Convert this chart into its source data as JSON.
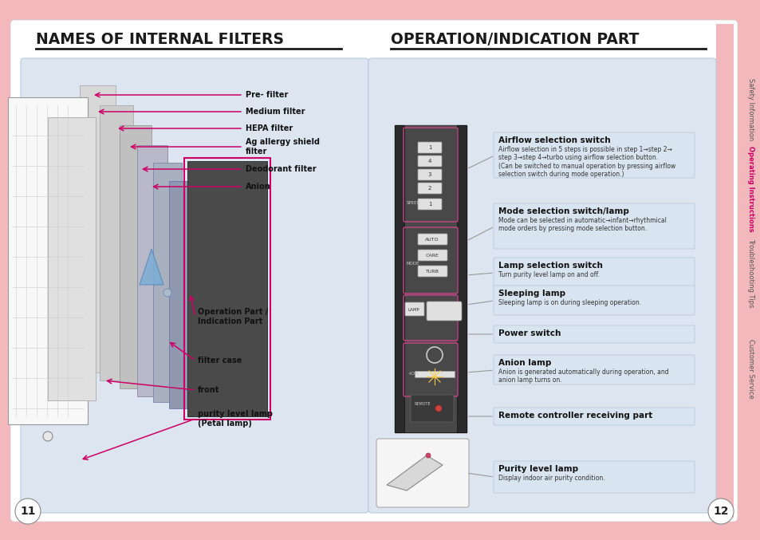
{
  "bg_color": "#f2b8bb",
  "page_bg": "#ffffff",
  "left_title": "NAMES OF INTERNAL FILTERS",
  "right_title": "OPERATION/INDICATION PART",
  "title_color": "#1a1a1a",
  "title_underline_color": "#1a1a1a",
  "left_panel_bg": "#dde5f0",
  "right_panel_bg": "#dde5f0",
  "arrow_color": "#cc0066",
  "label_color": "#1a1a1a",
  "label_box_bg": "#d8e4f0",
  "desc_text_color": "#333333",
  "sidebar_labels": [
    "Safety Information",
    "Operating Instructions",
    "Troubleshooting Tips",
    "Customer Service"
  ],
  "sidebar_highlight_idx": 1,
  "sidebar_highlight_color": "#cc0066",
  "sidebar_normal_color": "#555555",
  "page_num_left": "11",
  "page_num_right": "12",
  "left_filter_labels": [
    "Pre- filter",
    "Medium filter",
    "HEPA filter",
    "Ag allergy shield\nfilter",
    "Deodorant filter",
    "Anion",
    "Operation Part /\nIndication Part",
    "filter case",
    "front",
    "purity level lamp\n(Petal lamp)"
  ],
  "right_labels": [
    {
      "title": "Airflow selection switch",
      "desc": "Airflow selection in 5 steps is possible in step 1→step 2→\nstep 3→step 4→turbo using airflow selection button.\n(Can be switched to manual operation by pressing airflow\nselection switch during mode operation.)"
    },
    {
      "title": "Mode selection switch/lamp",
      "desc": "Mode can be selected in automatic→infant→rhythmical\nmode orders by pressing mode selection button."
    },
    {
      "title": "Lamp selection switch",
      "desc": "Turn purity level lamp on and off."
    },
    {
      "title": "Sleeping lamp",
      "desc": "Sleeping lamp is on during sleeping operation."
    },
    {
      "title": "Power switch",
      "desc": ""
    },
    {
      "title": "Anion lamp",
      "desc": "Anion is generated automatically during operation, and\nanion lamp turns on."
    },
    {
      "title": "Remote controller receiving part",
      "desc": ""
    },
    {
      "title": "Purity level lamp",
      "desc": "Display indoor air purity condition."
    }
  ]
}
